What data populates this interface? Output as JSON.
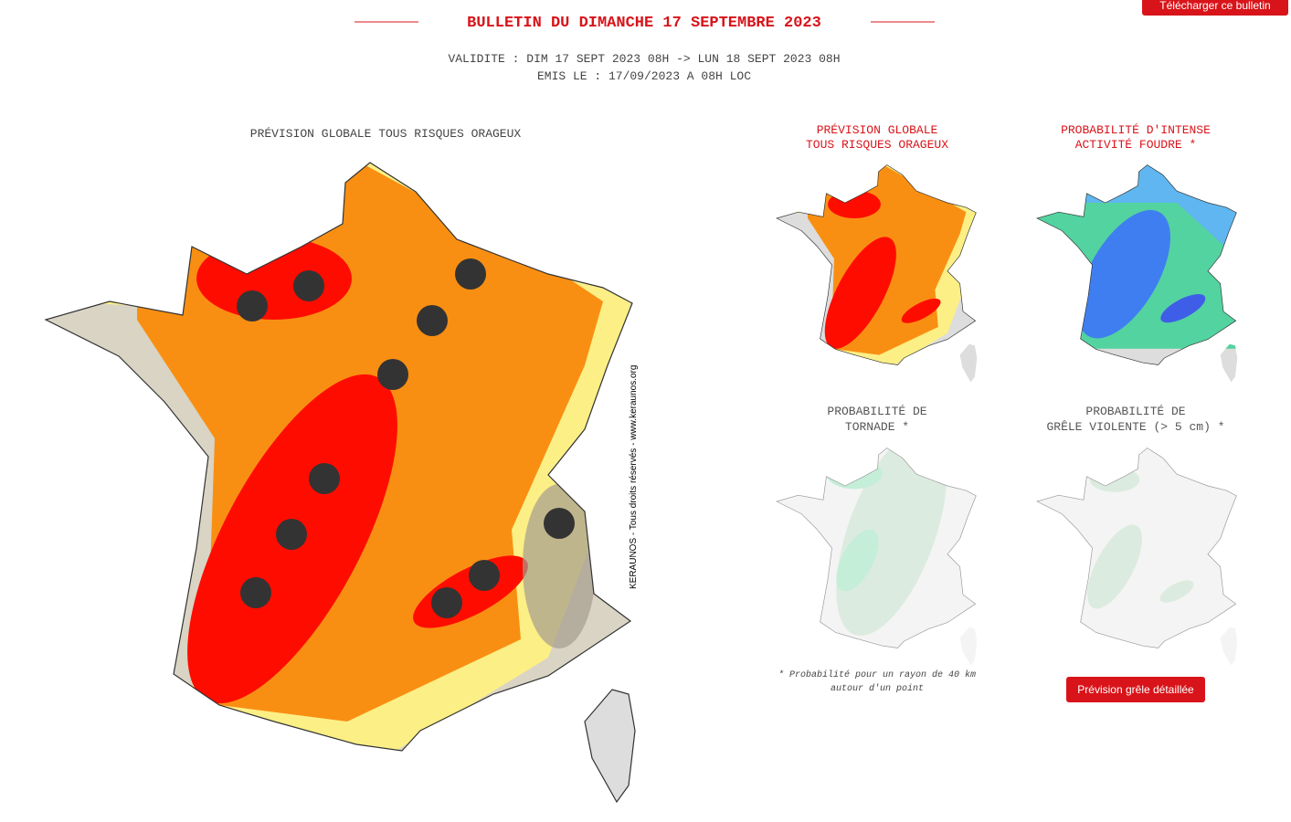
{
  "header": {
    "download_button": "Télécharger ce bulletin",
    "title": "BULLETIN DU DIMANCHE 17 SEPTEMBRE 2023",
    "validity": "VALIDITE : DIM 17 SEPT 2023 08H -> LUN 18 SEPT 2023 08H",
    "issued": "EMIS LE : 17/09/2023 A 08H LOC"
  },
  "main_map": {
    "title": "PRÉVISION GLOBALE TOUS RISQUES ORAGEUX",
    "watermark": "KERAUNOS - Tous droits réservés - www.keraunos.org"
  },
  "small_maps": [
    {
      "title_lines": [
        "PRÉVISION GLOBALE",
        "TOUS RISQUES ORAGEUX"
      ]
    },
    {
      "title_lines": [
        "PROBABILITÉ D'INTENSE",
        "ACTIVITÉ FOUDRE *"
      ]
    },
    {
      "title_lines": [
        "PROBABILITÉ DE",
        "TORNADE *"
      ]
    },
    {
      "title_lines": [
        "PROBABILITÉ DE",
        "GRÊLE VIOLENTE (> 5 cm) *"
      ]
    }
  ],
  "note": [
    "* Probabilité pour un rayon de 40 km",
    "autour d'un point"
  ],
  "hail_button": "Prévision grêle détaillée"
}
